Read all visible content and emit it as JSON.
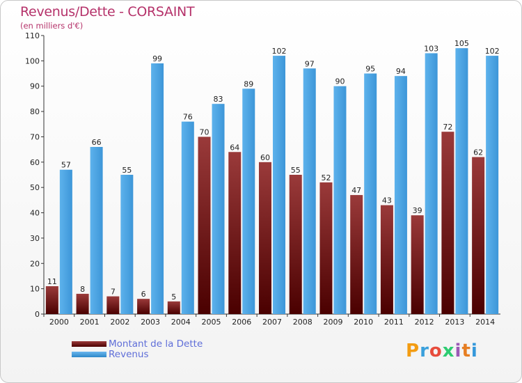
{
  "chart_data": {
    "type": "bar",
    "title": "Revenus/Dette - CORSAINT",
    "subtitle": "(en milliers d'€)",
    "categories": [
      "2000",
      "2001",
      "2002",
      "2003",
      "2004",
      "2005",
      "2006",
      "2007",
      "2008",
      "2009",
      "2010",
      "2011",
      "2012",
      "2013",
      "2014"
    ],
    "series": [
      {
        "name": "Montant de la Dette",
        "color": "#7a1a1a",
        "values": [
          11,
          8,
          7,
          6,
          5,
          70,
          64,
          60,
          55,
          52,
          47,
          43,
          39,
          72,
          62
        ]
      },
      {
        "name": "Revenus",
        "color": "#4aa3e6",
        "values": [
          57,
          66,
          55,
          99,
          76,
          83,
          89,
          102,
          97,
          90,
          95,
          94,
          103,
          105,
          102
        ]
      }
    ],
    "ylim": [
      0,
      110
    ],
    "yticks": [
      0,
      10,
      20,
      30,
      40,
      50,
      60,
      70,
      80,
      90,
      100,
      110
    ],
    "xlabel": "",
    "ylabel": "",
    "grid": false,
    "legend": "bottom-left"
  },
  "branding": {
    "logo_text": "Proxiti",
    "logo_colors": [
      "#f39c12",
      "#3aa0dc",
      "#e74c3c",
      "#2ecc71",
      "#9b59b6",
      "#e67e22",
      "#3498db"
    ]
  }
}
